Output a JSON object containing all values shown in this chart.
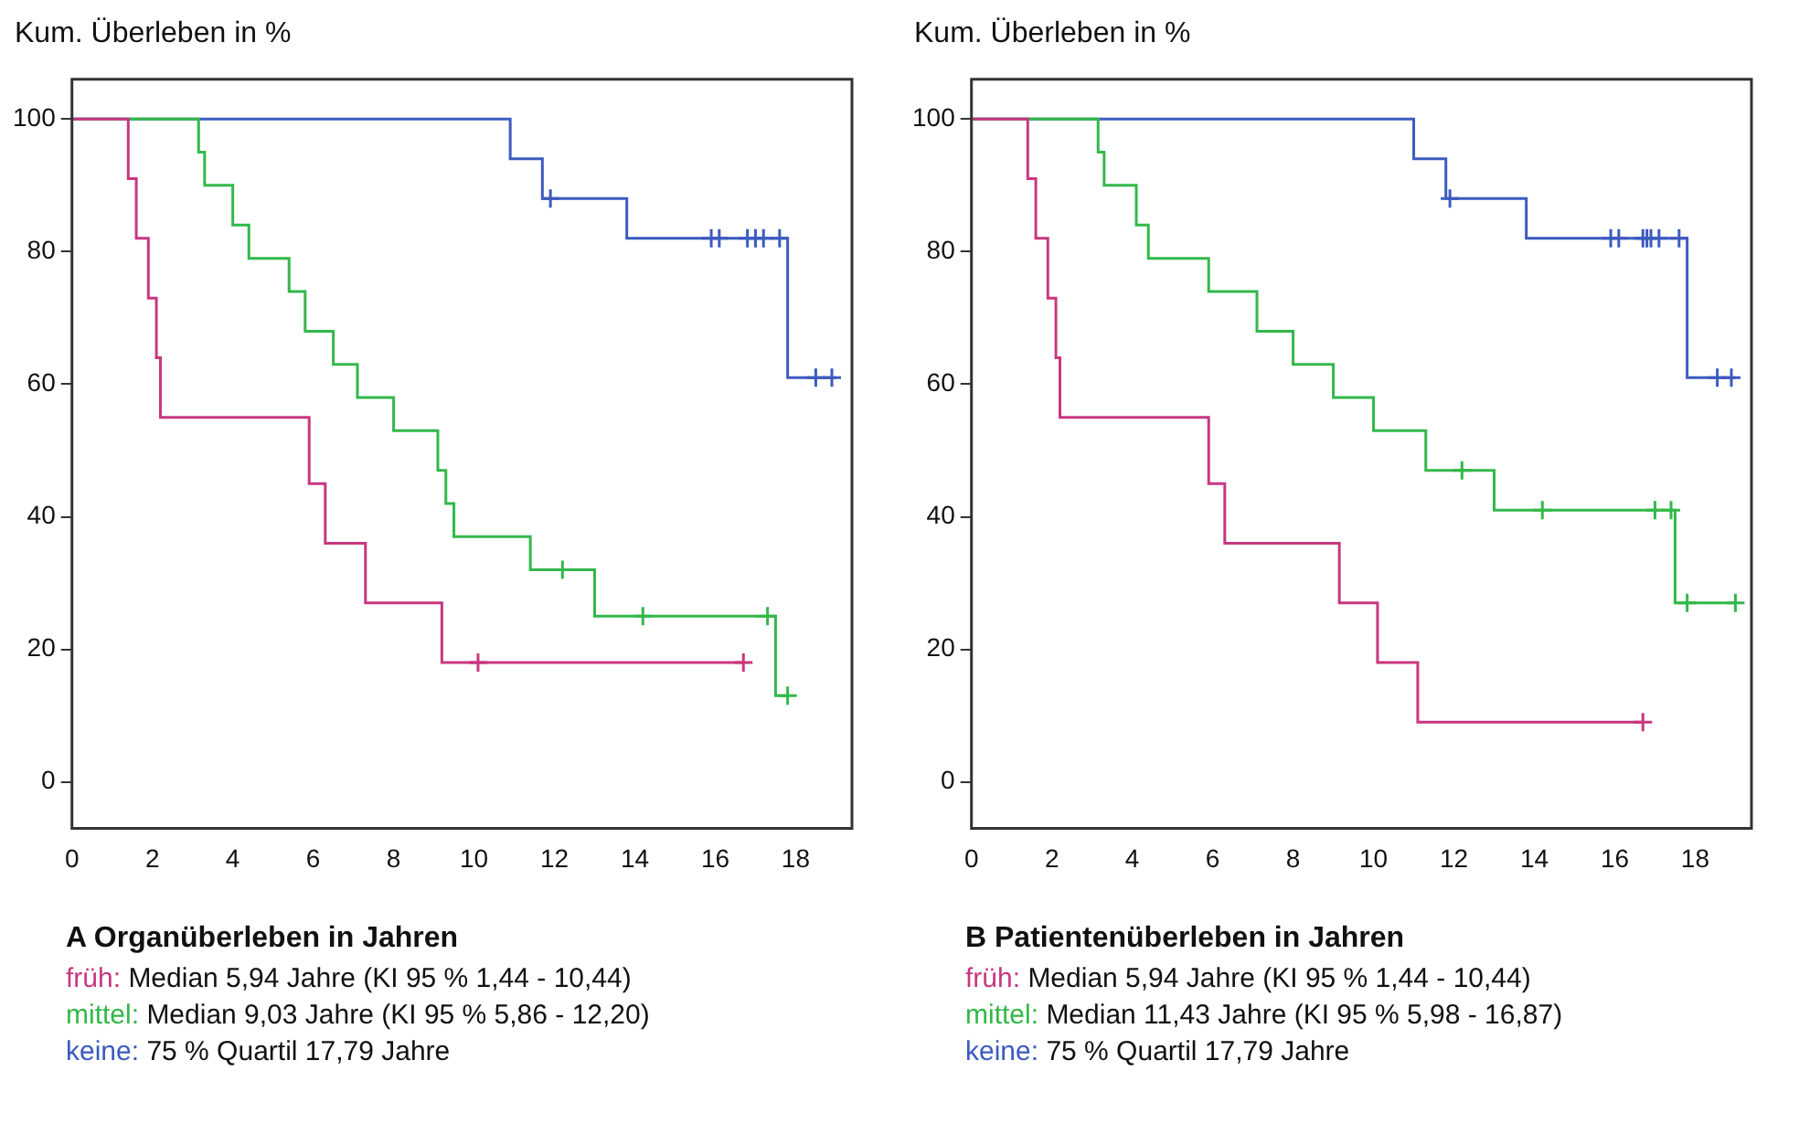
{
  "chart_data": [
    {
      "type": "step",
      "title": "A Organüberleben in Jahren",
      "ylabel": "Kum. Überleben in %",
      "xlim": [
        0,
        19.4
      ],
      "ylim": [
        -7,
        106
      ],
      "xticks": [
        0,
        2,
        4,
        6,
        8,
        10,
        12,
        14,
        16,
        18
      ],
      "yticks": [
        0,
        20,
        40,
        60,
        80,
        100
      ],
      "grid": false,
      "legend": false,
      "annotations": [
        "Median 5,94 Jahre (KI 95 % 1,44 - 10,44)",
        "Median 9,03 Jahre (KI 95 % 5,86 - 12,20)",
        "75 % Quartil 17,79 Jahre"
      ],
      "series": [
        {
          "name": "früh:",
          "color": "#c8377f",
          "x": [
            0,
            1.4,
            1.6,
            1.9,
            2.1,
            2.2,
            5.9,
            6.3,
            7.3,
            9.2,
            16.7
          ],
          "values": [
            100,
            91,
            82,
            73,
            64,
            55,
            45,
            36,
            27,
            18,
            18
          ]
        },
        {
          "name": "mittel:",
          "color": "#33b84a",
          "x": [
            0,
            3.15,
            3.3,
            4.0,
            4.4,
            5.4,
            5.8,
            6.5,
            7.1,
            8.0,
            9.1,
            9.3,
            9.5,
            11.4,
            13.0,
            17.5,
            17.8
          ],
          "values": [
            100,
            95,
            90,
            84,
            79,
            74,
            68,
            63,
            58,
            53,
            47,
            42,
            37,
            32,
            25,
            13,
            13
          ]
        },
        {
          "name": "keine:",
          "color": "#3c5bbf",
          "x": [
            0,
            10.9,
            11.7,
            13.8,
            17.8,
            19.0
          ],
          "values": [
            100,
            94,
            88,
            82,
            61,
            61
          ]
        },
        {
          "type": "scatter",
          "marker": "cross",
          "color": "#c8377f",
          "x": [
            10.1,
            16.7
          ],
          "values": [
            18,
            18
          ]
        },
        {
          "type": "scatter",
          "marker": "cross",
          "color": "#33b84a",
          "x": [
            12.2,
            14.2,
            17.3,
            17.8
          ],
          "values": [
            32,
            25,
            25,
            13
          ]
        },
        {
          "type": "scatter",
          "marker": "cross",
          "color": "#3c5bbf",
          "x": [
            11.9,
            15.9,
            16.1,
            16.8,
            17.0,
            17.2,
            17.6,
            18.5,
            18.9
          ],
          "values": [
            88,
            82,
            82,
            82,
            82,
            82,
            82,
            61,
            61
          ]
        }
      ]
    },
    {
      "type": "step",
      "title": "B Patientenüberleben in Jahren",
      "ylabel": "Kum. Überleben in %",
      "xlim": [
        0,
        19.4
      ],
      "ylim": [
        -7,
        106
      ],
      "xticks": [
        0,
        2,
        4,
        6,
        8,
        10,
        12,
        14,
        16,
        18
      ],
      "yticks": [
        0,
        20,
        40,
        60,
        80,
        100
      ],
      "grid": false,
      "legend": false,
      "annotations": [
        "Median 5,94 Jahre (KI 95 % 1,44 - 10,44)",
        "Median 11,43 Jahre (KI 95 % 5,98 - 16,87)",
        "75 % Quartil 17,79 Jahre"
      ],
      "series": [
        {
          "name": "früh:",
          "color": "#c8377f",
          "x": [
            0,
            1.4,
            1.6,
            1.9,
            2.1,
            2.2,
            5.9,
            6.3,
            9.15,
            10.1,
            11.1,
            16.7
          ],
          "values": [
            100,
            91,
            82,
            73,
            64,
            55,
            45,
            36,
            27,
            18,
            9,
            9
          ]
        },
        {
          "name": "mittel:",
          "color": "#33b84a",
          "x": [
            0,
            3.15,
            3.3,
            4.1,
            4.4,
            5.9,
            7.1,
            8.0,
            9.0,
            10.0,
            11.3,
            13.0,
            17.5,
            19.0
          ],
          "values": [
            100,
            95,
            90,
            84,
            79,
            74,
            68,
            63,
            58,
            53,
            47,
            41,
            27,
            27
          ]
        },
        {
          "name": "keine:",
          "color": "#3c5bbf",
          "x": [
            0,
            11.0,
            11.8,
            13.8,
            17.8,
            19.0
          ],
          "values": [
            100,
            94,
            88,
            82,
            61,
            61
          ]
        },
        {
          "type": "scatter",
          "marker": "cross",
          "color": "#c8377f",
          "x": [
            16.7
          ],
          "values": [
            9
          ]
        },
        {
          "type": "scatter",
          "marker": "cross",
          "color": "#33b84a",
          "x": [
            12.2,
            14.2,
            17.0,
            17.4,
            17.8,
            19.0
          ],
          "values": [
            47,
            41,
            41,
            41,
            27,
            27
          ]
        },
        {
          "type": "scatter",
          "marker": "cross",
          "color": "#3c5bbf",
          "x": [
            11.9,
            15.9,
            16.1,
            16.7,
            16.8,
            16.9,
            17.1,
            17.6,
            18.55,
            18.9
          ],
          "values": [
            88,
            82,
            82,
            82,
            82,
            82,
            82,
            82,
            61,
            61
          ]
        }
      ]
    }
  ]
}
